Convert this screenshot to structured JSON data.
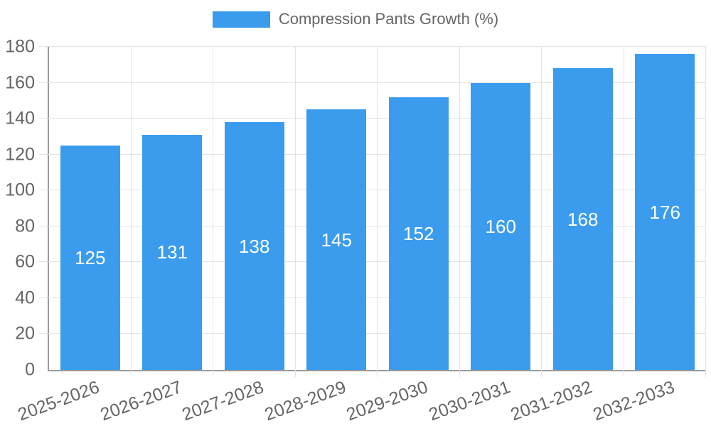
{
  "chart_data": {
    "type": "bar",
    "title": "",
    "legend_label": "Compression Pants Growth (%)",
    "legend_position": "top",
    "categories": [
      "2025-2026",
      "2026-2027",
      "2027-2028",
      "2028-2029",
      "2029-2030",
      "2030-2031",
      "2031-2032",
      "2032-2033"
    ],
    "values": [
      125,
      131,
      138,
      145,
      152,
      160,
      168,
      176
    ],
    "xlabel": "",
    "ylabel": "",
    "ylim": [
      0,
      180
    ],
    "ytick_step": 20,
    "yticks": [
      0,
      20,
      40,
      60,
      80,
      100,
      120,
      140,
      160,
      180
    ],
    "grid": true,
    "value_labels_inside_bars": true,
    "colors": {
      "bar": "#3b9cee",
      "bar_label": "#ffffff",
      "axis_line": "#9a9a9a",
      "grid_line": "#e3e3e3",
      "text": "#666666",
      "background": "#ffffff"
    }
  }
}
